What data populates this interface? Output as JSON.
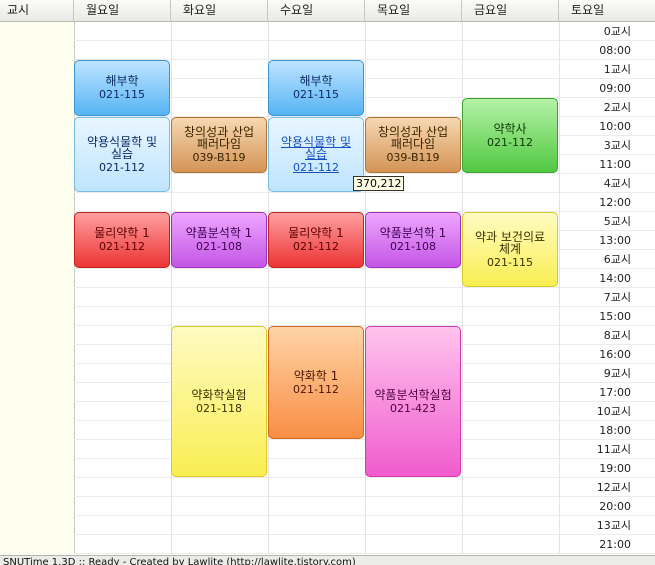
{
  "header": {
    "corner": "교시",
    "days": [
      "월요일",
      "화요일",
      "수요일",
      "목요일",
      "금요일",
      "토요일"
    ]
  },
  "rows": [
    "0교시",
    "08:00",
    "1교시",
    "09:00",
    "2교시",
    "10:00",
    "3교시",
    "11:00",
    "4교시",
    "12:00",
    "5교시",
    "13:00",
    "6교시",
    "14:00",
    "7교시",
    "15:00",
    "8교시",
    "16:00",
    "9교시",
    "17:00",
    "10교시",
    "18:00",
    "11교시",
    "19:00",
    "12교시",
    "20:00",
    "13교시",
    "21:00"
  ],
  "courses": [
    {
      "title": "해부학",
      "room": "021-115",
      "color": "blue"
    },
    {
      "title": "약용식물학 및\n실습",
      "room": "021-112",
      "color": "lblue"
    },
    {
      "title": "물리약학 1",
      "room": "021-112",
      "color": "red"
    },
    {
      "title": "창의성과 산업\n패러다임",
      "room": "039-B119",
      "color": "tan"
    },
    {
      "title": "약품분석학 1",
      "room": "021-108",
      "color": "purple"
    },
    {
      "title": "약화학실험",
      "room": "021-118",
      "color": "yellow"
    },
    {
      "title": "해부학",
      "room": "021-115",
      "color": "blue"
    },
    {
      "title": "약용식물학 및\n실습",
      "room": "021-112",
      "color": "lblue"
    },
    {
      "title": "물리약학 1",
      "room": "021-112",
      "color": "red"
    },
    {
      "title": "약화학 1",
      "room": "021-112",
      "color": "orange"
    },
    {
      "title": "창의성과 산업\n패러다임",
      "room": "039-B119",
      "color": "tan"
    },
    {
      "title": "약품분석학 1",
      "room": "021-108",
      "color": "purple"
    },
    {
      "title": "약품분석학실험",
      "room": "021-423",
      "color": "pink"
    },
    {
      "title": "약학사",
      "room": "021-112",
      "color": "green"
    },
    {
      "title": "약과 보건의료\n체계",
      "room": "021-115",
      "color": "yellow"
    }
  ],
  "tooltip": "370,212",
  "status": "SNUTime 1.3D :: Ready - Created by Lawlite (http://lawlite.tistory.com)"
}
